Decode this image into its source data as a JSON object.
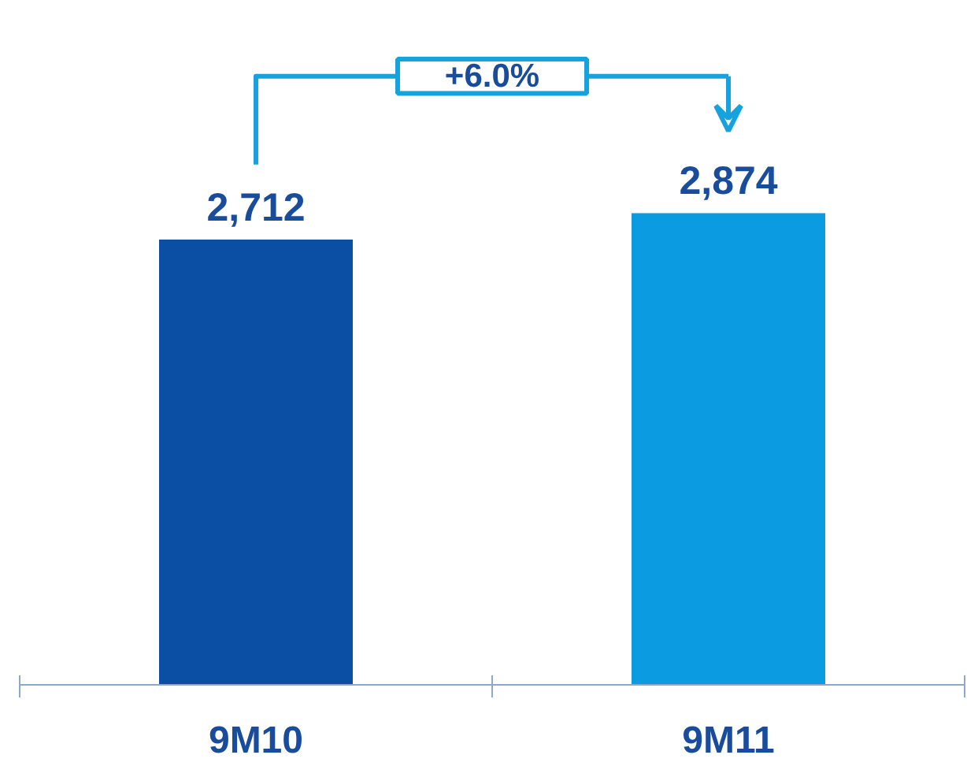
{
  "chart_data": {
    "type": "bar",
    "categories": [
      "9M10",
      "9M11"
    ],
    "values": [
      2712,
      2874
    ],
    "value_labels": [
      "2,712",
      "2,874"
    ],
    "colors": [
      "#0a4fa3",
      "#0a9be0"
    ],
    "grid": false,
    "annotations": [
      "+6.0%"
    ]
  }
}
